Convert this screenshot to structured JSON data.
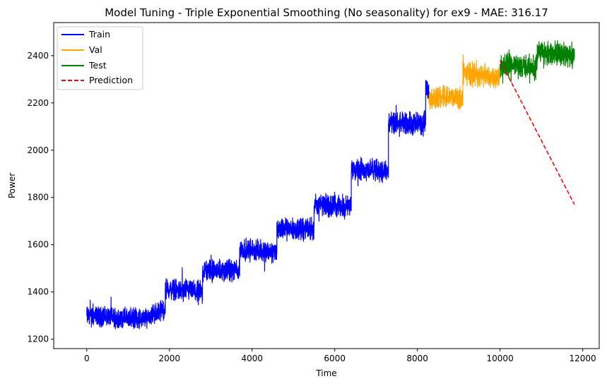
{
  "chart_data": {
    "type": "line",
    "title": "Model Tuning - Triple Exponential Smoothing (No seasonality) for ex9 - MAE: 316.17",
    "xlabel": "Time",
    "ylabel": "Power",
    "xlim": [
      -800,
      12400
    ],
    "ylim": [
      1160,
      2540
    ],
    "xticks": [
      0,
      2000,
      4000,
      6000,
      8000,
      10000,
      12000
    ],
    "yticks": [
      1200,
      1400,
      1600,
      1800,
      2000,
      2200,
      2400
    ],
    "grid": false,
    "legend": {
      "placement": "top-left"
    },
    "series": [
      {
        "name": "Train",
        "color": "#0000ff",
        "style": "solid",
        "kind": "noisy-steps",
        "segments": [
          {
            "x0": 0,
            "x1": 1400,
            "mean0": 1300,
            "mean1": 1285,
            "amp": 50
          },
          {
            "x0": 1400,
            "x1": 1900,
            "mean0": 1290,
            "mean1": 1330,
            "amp": 50
          },
          {
            "x0": 1900,
            "x1": 2800,
            "mean0": 1410,
            "mean1": 1400,
            "amp": 55
          },
          {
            "x0": 2800,
            "x1": 3700,
            "mean0": 1490,
            "mean1": 1490,
            "amp": 55
          },
          {
            "x0": 3700,
            "x1": 4600,
            "mean0": 1580,
            "mean1": 1570,
            "amp": 55
          },
          {
            "x0": 4600,
            "x1": 5500,
            "mean0": 1665,
            "mean1": 1665,
            "amp": 55
          },
          {
            "x0": 5500,
            "x1": 6400,
            "mean0": 1770,
            "mean1": 1760,
            "amp": 55
          },
          {
            "x0": 6400,
            "x1": 7300,
            "mean0": 1925,
            "mean1": 1910,
            "amp": 55
          },
          {
            "x0": 7300,
            "x1": 8200,
            "mean0": 2110,
            "mean1": 2110,
            "amp": 60
          },
          {
            "x0": 8200,
            "x1": 8280,
            "mean0": 2280,
            "mean1": 2240,
            "amp": 40
          }
        ]
      },
      {
        "name": "Val",
        "color": "#ffa500",
        "style": "solid",
        "kind": "noisy-steps",
        "segments": [
          {
            "x0": 8280,
            "x1": 9100,
            "mean0": 2220,
            "mean1": 2225,
            "amp": 55
          },
          {
            "x0": 9100,
            "x1": 10000,
            "mean0": 2325,
            "mean1": 2310,
            "amp": 60
          }
        ]
      },
      {
        "name": "Test",
        "color": "#008000",
        "style": "solid",
        "kind": "noisy-steps",
        "segments": [
          {
            "x0": 10000,
            "x1": 10900,
            "mean0": 2360,
            "mean1": 2350,
            "amp": 60
          },
          {
            "x0": 10900,
            "x1": 11800,
            "mean0": 2420,
            "mean1": 2400,
            "amp": 60
          }
        ]
      },
      {
        "name": "Prediction",
        "color": "#ff0000",
        "style": "dashed",
        "kind": "line",
        "x": [
          10000,
          11800
        ],
        "y": [
          2380,
          1770
        ]
      }
    ]
  }
}
